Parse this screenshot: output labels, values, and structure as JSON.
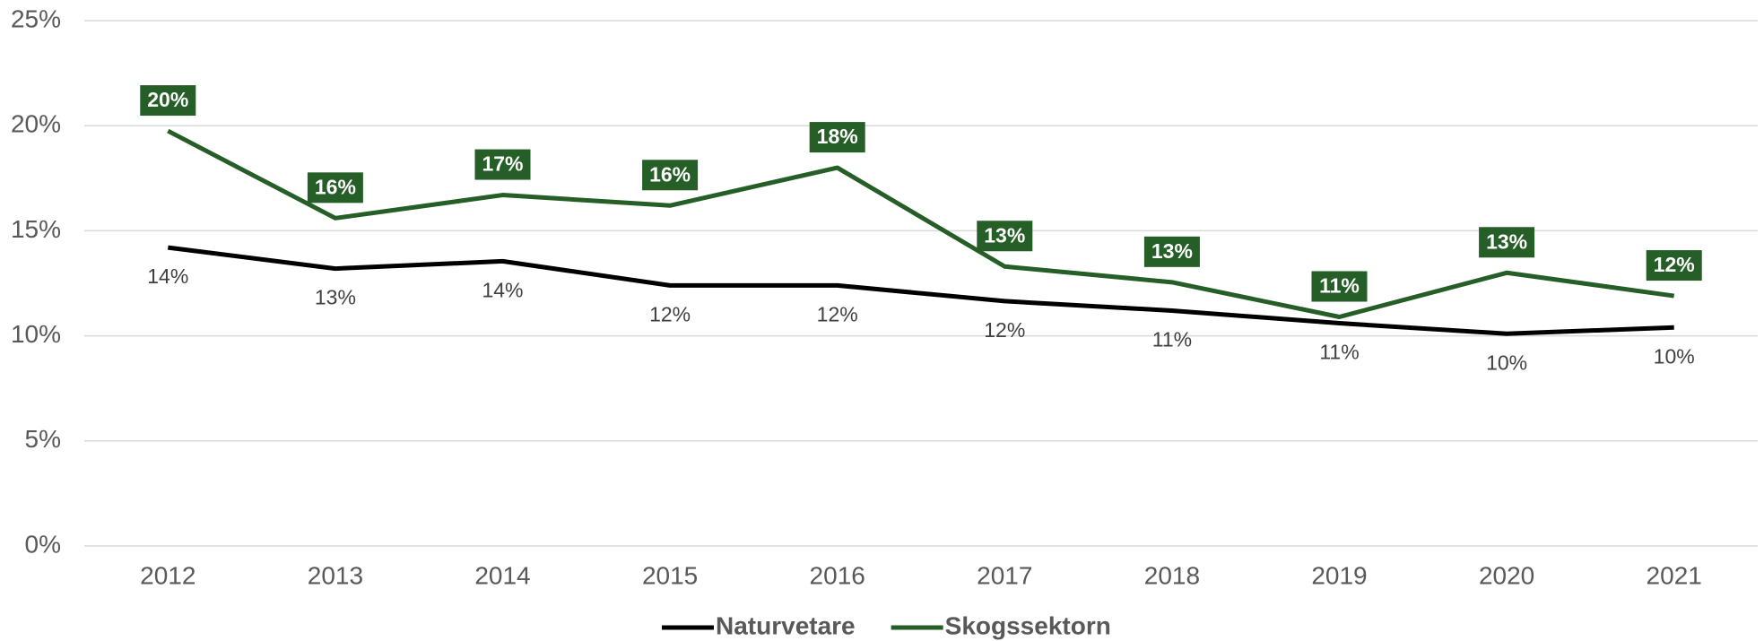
{
  "chart_data": {
    "type": "line",
    "categories": [
      "2012",
      "2013",
      "2014",
      "2015",
      "2016",
      "2017",
      "2018",
      "2019",
      "2020",
      "2021"
    ],
    "series": [
      {
        "name": "Naturvetare",
        "color": "#000000",
        "values": [
          14.2,
          13.2,
          13.55,
          12.4,
          12.4,
          11.65,
          11.2,
          10.6,
          10.1,
          10.4
        ],
        "value_labels": [
          "14%",
          "13%",
          "14%",
          "12%",
          "12%",
          "12%",
          "11%",
          "11%",
          "10%",
          "10%"
        ]
      },
      {
        "name": "Skogssektorn",
        "color": "#255e26",
        "values": [
          19.75,
          15.6,
          16.7,
          16.2,
          18.0,
          13.3,
          12.55,
          10.9,
          13.0,
          11.9
        ],
        "value_labels": [
          "20%",
          "16%",
          "17%",
          "16%",
          "18%",
          "13%",
          "13%",
          "11%",
          "13%",
          "12%"
        ]
      }
    ],
    "ylim": [
      0,
      25
    ],
    "yticks": [
      {
        "value": 0,
        "label": "0%"
      },
      {
        "value": 5,
        "label": "5%"
      },
      {
        "value": 10,
        "label": "10%"
      },
      {
        "value": 15,
        "label": "15%"
      },
      {
        "value": 20,
        "label": "20%"
      },
      {
        "value": 25,
        "label": "25%"
      }
    ],
    "grid": true,
    "legend": "bottom"
  }
}
